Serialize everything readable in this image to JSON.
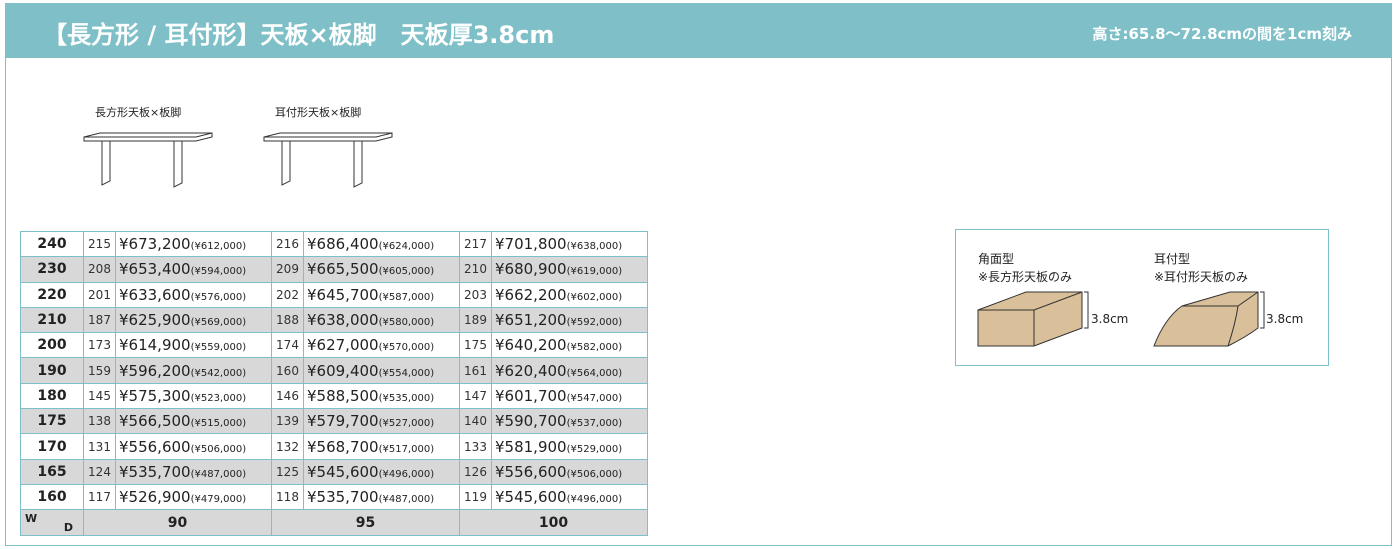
{
  "header": {
    "title": "【長方形 / 耳付形】天板×板脚　天板厚3.8cm",
    "height_note": "高さ:65.8〜72.8cmの間を1cm刻み"
  },
  "illustrations": [
    {
      "label": "長方形天板×板脚"
    },
    {
      "label": "耳付形天板×板脚"
    }
  ],
  "table": {
    "corner": {
      "w": "W",
      "d": "D"
    },
    "rows": [
      {
        "width": 240,
        "cells": [
          {
            "code": 215,
            "price": "¥673,200",
            "ex": "(¥612,000)"
          },
          {
            "code": 216,
            "price": "¥686,400",
            "ex": "(¥624,000)"
          },
          {
            "code": 217,
            "price": "¥701,800",
            "ex": "(¥638,000)"
          }
        ]
      },
      {
        "width": 230,
        "cells": [
          {
            "code": 208,
            "price": "¥653,400",
            "ex": "(¥594,000)"
          },
          {
            "code": 209,
            "price": "¥665,500",
            "ex": "(¥605,000)"
          },
          {
            "code": 210,
            "price": "¥680,900",
            "ex": "(¥619,000)"
          }
        ]
      },
      {
        "width": 220,
        "cells": [
          {
            "code": 201,
            "price": "¥633,600",
            "ex": "(¥576,000)"
          },
          {
            "code": 202,
            "price": "¥645,700",
            "ex": "(¥587,000)"
          },
          {
            "code": 203,
            "price": "¥662,200",
            "ex": "(¥602,000)"
          }
        ]
      },
      {
        "width": 210,
        "cells": [
          {
            "code": 187,
            "price": "¥625,900",
            "ex": "(¥569,000)"
          },
          {
            "code": 188,
            "price": "¥638,000",
            "ex": "(¥580,000)"
          },
          {
            "code": 189,
            "price": "¥651,200",
            "ex": "(¥592,000)"
          }
        ]
      },
      {
        "width": 200,
        "cells": [
          {
            "code": 173,
            "price": "¥614,900",
            "ex": "(¥559,000)"
          },
          {
            "code": 174,
            "price": "¥627,000",
            "ex": "(¥570,000)"
          },
          {
            "code": 175,
            "price": "¥640,200",
            "ex": "(¥582,000)"
          }
        ]
      },
      {
        "width": 190,
        "cells": [
          {
            "code": 159,
            "price": "¥596,200",
            "ex": "(¥542,000)"
          },
          {
            "code": 160,
            "price": "¥609,400",
            "ex": "(¥554,000)"
          },
          {
            "code": 161,
            "price": "¥620,400",
            "ex": "(¥564,000)"
          }
        ]
      },
      {
        "width": 180,
        "cells": [
          {
            "code": 145,
            "price": "¥575,300",
            "ex": "(¥523,000)"
          },
          {
            "code": 146,
            "price": "¥588,500",
            "ex": "(¥535,000)"
          },
          {
            "code": 147,
            "price": "¥601,700",
            "ex": "(¥547,000)"
          }
        ]
      },
      {
        "width": 175,
        "cells": [
          {
            "code": 138,
            "price": "¥566,500",
            "ex": "(¥515,000)"
          },
          {
            "code": 139,
            "price": "¥579,700",
            "ex": "(¥527,000)"
          },
          {
            "code": 140,
            "price": "¥590,700",
            "ex": "(¥537,000)"
          }
        ]
      },
      {
        "width": 170,
        "cells": [
          {
            "code": 131,
            "price": "¥556,600",
            "ex": "(¥506,000)"
          },
          {
            "code": 132,
            "price": "¥568,700",
            "ex": "(¥517,000)"
          },
          {
            "code": 133,
            "price": "¥581,900",
            "ex": "(¥529,000)"
          }
        ]
      },
      {
        "width": 165,
        "cells": [
          {
            "code": 124,
            "price": "¥535,700",
            "ex": "(¥487,000)"
          },
          {
            "code": 125,
            "price": "¥545,600",
            "ex": "(¥496,000)"
          },
          {
            "code": 126,
            "price": "¥556,600",
            "ex": "(¥506,000)"
          }
        ]
      },
      {
        "width": 160,
        "cells": [
          {
            "code": 117,
            "price": "¥526,900",
            "ex": "(¥479,000)"
          },
          {
            "code": 118,
            "price": "¥535,700",
            "ex": "(¥487,000)"
          },
          {
            "code": 119,
            "price": "¥545,600",
            "ex": "(¥496,000)"
          }
        ]
      }
    ],
    "depths": [
      90,
      95,
      100
    ]
  },
  "edges": [
    {
      "name": "角面型",
      "note": "※長方形天板のみ",
      "thickness": "3.8cm"
    },
    {
      "name": "耳付型",
      "note": "※耳付形天板のみ",
      "thickness": "3.8cm"
    }
  ]
}
